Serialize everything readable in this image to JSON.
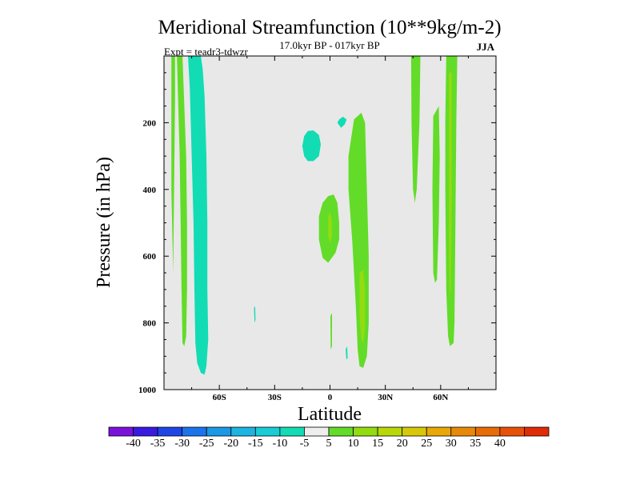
{
  "chart_data": {
    "type": "contour",
    "title": "Meridional Streamfunction (10**9kg/m-2)",
    "subtitle": "17.0kyr BP - 017kyr BP",
    "experiment": "Expt = teadr3-tdwzr",
    "season": "JJA",
    "xlabel": "Latitude",
    "ylabel": "Pressure (in hPa)",
    "xlim": [
      -90,
      90
    ],
    "ylim": [
      0,
      1000
    ],
    "x_ticks": [
      {
        "value": -60,
        "label": "60S"
      },
      {
        "value": -30,
        "label": "30S"
      },
      {
        "value": 0,
        "label": "0"
      },
      {
        "value": 30,
        "label": "30N"
      },
      {
        "value": 60,
        "label": "60N"
      }
    ],
    "y_ticks": [
      {
        "value": 200,
        "label": "200"
      },
      {
        "value": 400,
        "label": "400"
      },
      {
        "value": 600,
        "label": "600"
      },
      {
        "value": 800,
        "label": "800"
      },
      {
        "value": 1000,
        "label": "1000"
      }
    ],
    "background_color": "#e8e8e8",
    "colorbar": {
      "colors": [
        "#7a12dc",
        "#3a1ae0",
        "#1e46e6",
        "#1c74ec",
        "#1c98e6",
        "#1cb4e0",
        "#19ccd6",
        "#12dcb4",
        "#eeeeee",
        "#62dc28",
        "#92dc10",
        "#b8d808",
        "#d8c808",
        "#e8a808",
        "#e88a08",
        "#e86c08",
        "#e85008",
        "#e02c08"
      ],
      "labels": [
        "-40",
        "-35",
        "-30",
        "-25",
        "-20",
        "-15",
        "-10",
        "-5",
        "5",
        "10",
        "15",
        "20",
        "25",
        "30",
        "35",
        "40"
      ]
    },
    "regions": [
      {
        "value": -7.5,
        "color": "#12dcb4",
        "points": [
          [
            -77,
            0
          ],
          [
            -70,
            0
          ],
          [
            -69,
            40
          ],
          [
            -68,
            120
          ],
          [
            -67,
            300
          ],
          [
            -66.5,
            500
          ],
          [
            -66.5,
            700
          ],
          [
            -66,
            850
          ],
          [
            -67,
            930
          ],
          [
            -68,
            955
          ],
          [
            -70,
            950
          ],
          [
            -72,
            920
          ],
          [
            -73,
            860
          ],
          [
            -73.5,
            700
          ],
          [
            -74,
            500
          ],
          [
            -75,
            300
          ],
          [
            -76,
            100
          ]
        ]
      },
      {
        "value": -7.5,
        "color": "#12dcb4",
        "points": [
          [
            -14,
            240
          ],
          [
            -12,
            225
          ],
          [
            -9,
            223
          ],
          [
            -6,
            237
          ],
          [
            -5,
            265
          ],
          [
            -6,
            300
          ],
          [
            -9,
            315
          ],
          [
            -12,
            315
          ],
          [
            -14,
            300
          ],
          [
            -15,
            270
          ]
        ]
      },
      {
        "value": -7.5,
        "color": "#12dcb4",
        "points": [
          [
            4,
            200
          ],
          [
            5,
            190
          ],
          [
            7,
            182
          ],
          [
            9,
            190
          ],
          [
            8,
            205
          ],
          [
            6,
            215
          ]
        ]
      },
      {
        "value": -7.5,
        "color": "#12dcb4",
        "points": [
          [
            -41.2,
            755
          ],
          [
            -40.6,
            750
          ],
          [
            -40.4,
            790
          ],
          [
            -40.9,
            800
          ]
        ]
      },
      {
        "value": -7.5,
        "color": "#12dcb4",
        "points": [
          [
            8.5,
            880
          ],
          [
            9.3,
            870
          ],
          [
            9.6,
            905
          ],
          [
            8.9,
            910
          ]
        ]
      },
      {
        "value": 7.5,
        "color": "#62dc28",
        "points": [
          [
            -86,
            0
          ],
          [
            -84,
            0
          ],
          [
            -84,
            130
          ],
          [
            -85,
            650
          ],
          [
            -86,
            400
          ]
        ]
      },
      {
        "value": 7.5,
        "color": "#62dc28",
        "points": [
          [
            -83,
            0
          ],
          [
            -80,
            0
          ],
          [
            -79,
            150
          ],
          [
            -78,
            300
          ],
          [
            -77.5,
            500
          ],
          [
            -77.5,
            700
          ],
          [
            -78,
            840
          ],
          [
            -79,
            870
          ],
          [
            -80,
            860
          ],
          [
            -80.5,
            700
          ],
          [
            -81,
            500
          ],
          [
            -81.5,
            300
          ]
        ]
      },
      {
        "value": 7.5,
        "color": "#62dc28",
        "points": [
          [
            -4,
            440
          ],
          [
            -1,
            420
          ],
          [
            2,
            415
          ],
          [
            4,
            440
          ],
          [
            5,
            500
          ],
          [
            5,
            550
          ],
          [
            3,
            590
          ],
          [
            -1,
            620
          ],
          [
            -4,
            605
          ],
          [
            -6,
            550
          ],
          [
            -6,
            480
          ]
        ]
      },
      {
        "value": 7.5,
        "color": "#62dc28",
        "points": [
          [
            10,
            300
          ],
          [
            13,
            190
          ],
          [
            17,
            170
          ],
          [
            19,
            200
          ],
          [
            20,
            400
          ],
          [
            21,
            600
          ],
          [
            21,
            800
          ],
          [
            20,
            900
          ],
          [
            18,
            935
          ],
          [
            16,
            930
          ],
          [
            15,
            880
          ],
          [
            14,
            750
          ],
          [
            12,
            550
          ],
          [
            10,
            400
          ]
        ]
      },
      {
        "value": 7.5,
        "color": "#62dc28",
        "points": [
          [
            0.2,
            780
          ],
          [
            1.1,
            770
          ],
          [
            1.1,
            870
          ],
          [
            0.4,
            880
          ]
        ]
      },
      {
        "value": 7.5,
        "color": "#62dc28",
        "points": [
          [
            44,
            0
          ],
          [
            49,
            0
          ],
          [
            48.5,
            200
          ],
          [
            47,
            400
          ],
          [
            46,
            440
          ],
          [
            45,
            400
          ],
          [
            44.2,
            200
          ]
        ]
      },
      {
        "value": 7.5,
        "color": "#62dc28",
        "points": [
          [
            56,
            180
          ],
          [
            59,
            150
          ],
          [
            59.5,
            300
          ],
          [
            59,
            500
          ],
          [
            58,
            670
          ],
          [
            57,
            680
          ],
          [
            56,
            650
          ],
          [
            55.5,
            400
          ]
        ]
      },
      {
        "value": 7.5,
        "color": "#62dc28",
        "points": [
          [
            63,
            0
          ],
          [
            69,
            0
          ],
          [
            68.5,
            200
          ],
          [
            68,
            500
          ],
          [
            67.5,
            800
          ],
          [
            67,
            860
          ],
          [
            65,
            870
          ],
          [
            64,
            840
          ],
          [
            63,
            700
          ],
          [
            62.5,
            400
          ],
          [
            62.5,
            200
          ]
        ]
      },
      {
        "value": 12.5,
        "color": "#92dc10",
        "points": [
          [
            -1,
            480
          ],
          [
            0,
            470
          ],
          [
            1,
            490
          ],
          [
            1.1,
            540
          ],
          [
            0,
            560
          ],
          [
            -1,
            540
          ]
        ]
      },
      {
        "value": 12.5,
        "color": "#92dc10",
        "points": [
          [
            16,
            650
          ],
          [
            18,
            640
          ],
          [
            19,
            700
          ],
          [
            19,
            820
          ],
          [
            18,
            860
          ],
          [
            17,
            850
          ],
          [
            16,
            780
          ]
        ]
      },
      {
        "value": 12.5,
        "color": "#92dc10",
        "points": [
          [
            64.5,
            50
          ],
          [
            66,
            50
          ],
          [
            66,
            400
          ],
          [
            65.5,
            700
          ],
          [
            65,
            720
          ],
          [
            64.5,
            600
          ]
        ]
      }
    ]
  }
}
